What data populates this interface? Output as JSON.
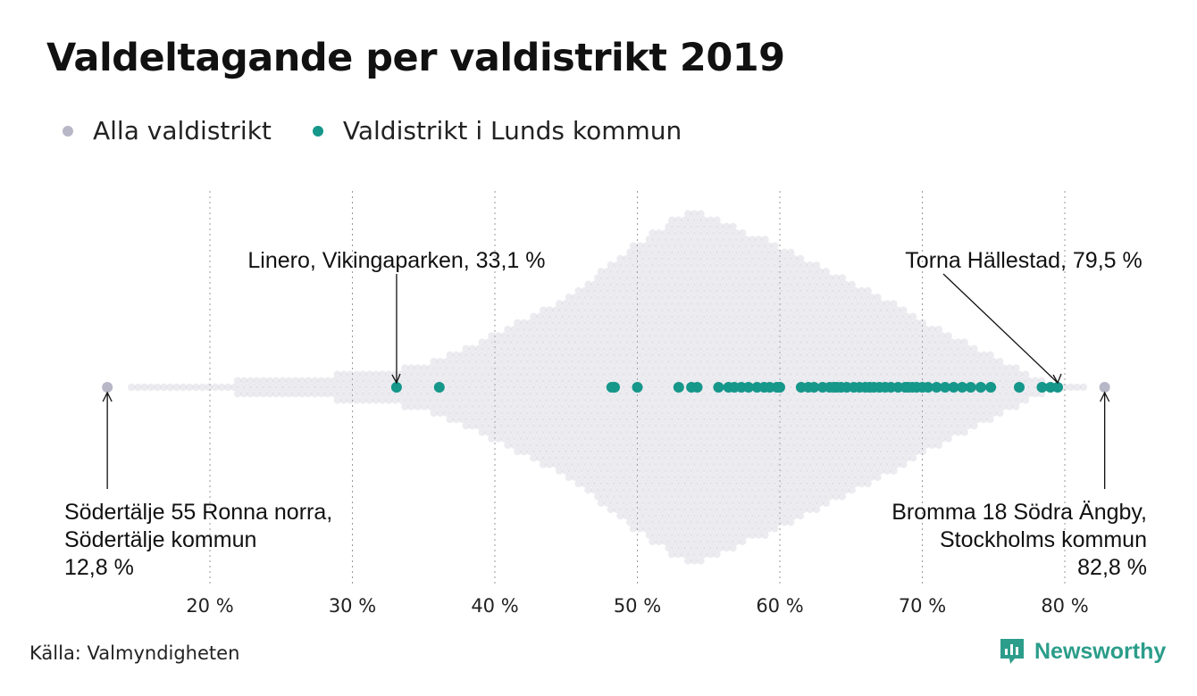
{
  "title": "Valdeltagande per valdistrikt 2019",
  "legend": {
    "all": {
      "label": "Alla valdistrikt",
      "color": "#b8b7c8"
    },
    "lund": {
      "label": "Valdistrikt i Lunds kommun",
      "color": "#15978a"
    }
  },
  "source": "Källa: Valmyndigheten",
  "brand": {
    "name": "Newsworthy",
    "icon": "newsworthy-logo-icon",
    "color": "#2b9d8a"
  },
  "chart_data": {
    "type": "scatter",
    "xlim": [
      11,
      85
    ],
    "x_ticks": [
      20,
      30,
      40,
      50,
      60,
      70,
      80
    ],
    "x_tick_labels": [
      "20 %",
      "30 %",
      "40 %",
      "50 %",
      "60 %",
      "70 %",
      "80 %"
    ],
    "grid": "vertical dotted",
    "series": [
      {
        "name": "Alla valdistrikt",
        "color": "#b8b7c8",
        "distribution_density": [
          [
            12.8,
            0
          ],
          [
            15,
            2
          ],
          [
            20,
            4
          ],
          [
            25,
            7
          ],
          [
            30,
            11
          ],
          [
            35,
            17
          ],
          [
            40,
            42
          ],
          [
            45,
            70
          ],
          [
            50,
            112
          ],
          [
            53.5,
            137
          ],
          [
            56,
            128
          ],
          [
            60,
            108
          ],
          [
            65,
            82
          ],
          [
            70,
            52
          ],
          [
            75,
            23
          ],
          [
            78,
            6
          ],
          [
            80,
            2
          ],
          [
            82.8,
            0
          ]
        ],
        "labeled_points": [
          12.8,
          82.8
        ]
      },
      {
        "name": "Valdistrikt i Lunds kommun",
        "color": "#15978a",
        "values": [
          33.1,
          36.1,
          48.2,
          48.4,
          50.0,
          52.9,
          53.8,
          54.2,
          55.7,
          56.4,
          56.8,
          57.3,
          57.8,
          58.4,
          58.9,
          59.3,
          59.8,
          60.0,
          61.5,
          62.0,
          62.4,
          63.0,
          63.5,
          63.8,
          64.0,
          64.3,
          64.7,
          65.2,
          65.6,
          66.0,
          66.3,
          66.6,
          67.0,
          67.4,
          67.8,
          68.3,
          68.8,
          69.0,
          69.3,
          69.6,
          70.0,
          70.4,
          71.0,
          71.6,
          72.2,
          72.8,
          73.4,
          74.1,
          74.8,
          76.8,
          78.4,
          79.0,
          79.5
        ]
      }
    ],
    "annotations": [
      {
        "lines": [
          "Linero, Vikingaparken, 33,1 %"
        ],
        "x": 33.1,
        "align": "center",
        "position": "above"
      },
      {
        "lines": [
          "Torna Hällestad, 79,5 %"
        ],
        "x": 79.5,
        "align": "center",
        "position": "above"
      },
      {
        "lines": [
          "Södertälje 55 Ronna norra,",
          "Södertälje kommun",
          "12,8 %"
        ],
        "x": 12.8,
        "align": "left",
        "position": "below"
      },
      {
        "lines": [
          "Bromma 18 Södra Ängby,",
          "Stockholms kommun",
          "82,8 %"
        ],
        "x": 82.8,
        "align": "right",
        "position": "below"
      }
    ]
  }
}
